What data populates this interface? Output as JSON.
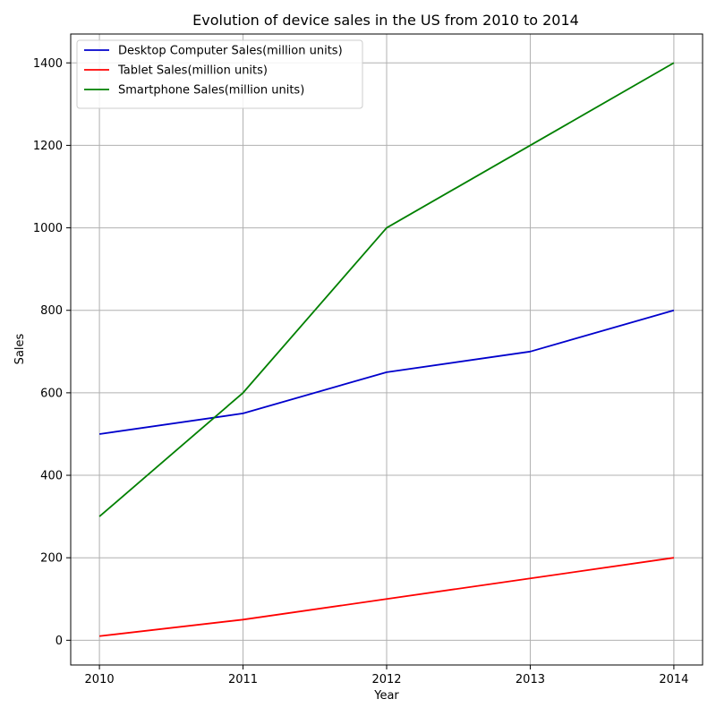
{
  "chart_data": {
    "type": "line",
    "title": "Evolution of device sales in the US from 2010 to 2014",
    "xlabel": "Year",
    "ylabel": "Sales",
    "x": [
      2010,
      2011,
      2012,
      2013,
      2014
    ],
    "x_tick_labels": [
      "2010",
      "2011",
      "2012",
      "2013",
      "2014"
    ],
    "xlim": [
      2009.8,
      2014.2
    ],
    "ylim": [
      -60,
      1470
    ],
    "y_ticks": [
      0,
      200,
      400,
      600,
      800,
      1000,
      1200,
      1400
    ],
    "y_tick_labels": [
      "0",
      "200",
      "400",
      "600",
      "800",
      "1000",
      "1200",
      "1400"
    ],
    "grid": true,
    "legend_position": "top-left",
    "series": [
      {
        "name": "Desktop Computer Sales(million units)",
        "color": "#0000cc",
        "values": [
          500,
          550,
          650,
          700,
          800
        ]
      },
      {
        "name": "Tablet Sales(million units)",
        "color": "#ff0000",
        "values": [
          10,
          50,
          100,
          150,
          200
        ]
      },
      {
        "name": "Smartphone Sales(million units)",
        "color": "#008000",
        "values": [
          300,
          600,
          1000,
          1200,
          1400
        ]
      }
    ]
  }
}
